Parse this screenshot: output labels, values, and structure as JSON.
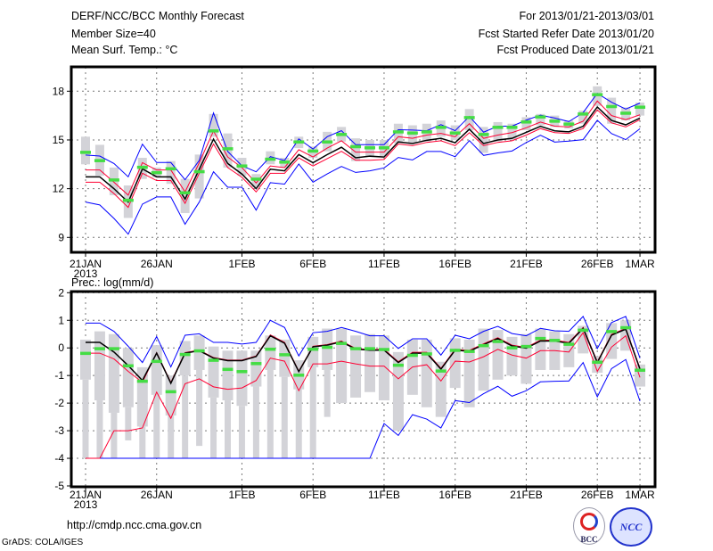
{
  "header": {
    "title": "DERF/NCC/BCC Monthly Forecast",
    "member_size": "Member Size=40",
    "variable": "Mean Surf. Temp.: °C",
    "period": "For 2013/01/21-2013/03/01",
    "started": "Fcst Started Refer Date 2013/01/20",
    "produced": "Fcst Produced Date 2013/01/21"
  },
  "footer": {
    "url": "http://cmdp.ncc.cma.gov.cn",
    "credit": "GrADS: COLA/IGES",
    "logo_left": "BCC",
    "logo_right": "NCC"
  },
  "colors": {
    "max_min": "#0000ff",
    "spread": "#ff0033",
    "mean": "#000000",
    "marker": "#44dd44",
    "box": "#d3d3d8",
    "grid": "#777777"
  },
  "chart_data": [
    {
      "type": "line",
      "title": "Mean Surf. Temp.: °C",
      "x_tick_days": [
        0,
        5,
        11,
        16,
        21,
        26,
        31,
        36,
        39
      ],
      "x_tick_labels": [
        "21JAN",
        "26JAN",
        "1FEB",
        "6FEB",
        "11FEB",
        "16FEB",
        "21FEB",
        "26FEB",
        "1MAR"
      ],
      "x_sub_label": "2013",
      "y_ticks": [
        9,
        12,
        15,
        18
      ],
      "ylim": [
        7.8,
        19.5
      ],
      "grid": true,
      "box_low": [
        13.5,
        12.8,
        11.6,
        10.2,
        12.6,
        12.7,
        12.3,
        10.5,
        11.4,
        15.2,
        13.3,
        12.8,
        12.1,
        13.5,
        13.3,
        14.5,
        13.9,
        14.3,
        14.9,
        13.7,
        14.0,
        14.0,
        14.8,
        14.8,
        14.9,
        15.2,
        15.0,
        15.6,
        14.2,
        14.9,
        15.0,
        15.6,
        15.9,
        15.8,
        15.7,
        16.0,
        17.1,
        16.0,
        16.2,
        16.5
      ],
      "box_high": [
        15.2,
        14.7,
        13.3,
        12.2,
        13.9,
        13.3,
        13.7,
        12.6,
        14.1,
        16.6,
        15.4,
        13.9,
        12.9,
        14.3,
        13.9,
        15.2,
        14.6,
        15.5,
        15.8,
        15.1,
        15.0,
        15.0,
        16.0,
        15.9,
        16.0,
        16.2,
        15.9,
        16.9,
        15.8,
        16.1,
        16.0,
        16.4,
        16.6,
        16.5,
        16.2,
        16.8,
        18.3,
        17.6,
        17.0,
        17.3
      ],
      "series": [
        {
          "name": "max",
          "color": "#0000ff",
          "values": [
            14.07,
            14.01,
            13.55,
            12.73,
            14.74,
            13.61,
            13.61,
            12.55,
            13.74,
            16.66,
            14.29,
            13.41,
            13.04,
            13.97,
            13.74,
            15.06,
            14.44,
            15.2,
            15.57,
            14.71,
            14.71,
            14.71,
            15.63,
            15.61,
            15.57,
            15.94,
            15.57,
            16.45,
            15.48,
            15.85,
            15.85,
            16.22,
            16.53,
            16.35,
            16.13,
            16.68,
            17.87,
            17.32,
            16.9,
            17.27
          ]
        },
        {
          "name": "min",
          "color": "#0000ff",
          "values": [
            11.18,
            11.0,
            10.17,
            9.2,
            11.05,
            11.49,
            11.49,
            9.81,
            11.18,
            13.04,
            12.09,
            12.09,
            10.68,
            12.37,
            12.28,
            13.52,
            12.4,
            12.91,
            13.37,
            13.0,
            13.1,
            13.28,
            13.92,
            13.77,
            14.29,
            14.29,
            13.97,
            14.96,
            14.05,
            14.2,
            14.32,
            14.84,
            15.29,
            14.87,
            14.93,
            15.02,
            16.21,
            15.39,
            15.02,
            15.69
          ]
        },
        {
          "name": "upper",
          "color": "#ff0033",
          "values": [
            13.15,
            13.15,
            12.4,
            11.6,
            13.6,
            13.15,
            13.15,
            11.8,
            13.6,
            15.55,
            13.95,
            13.3,
            12.35,
            13.4,
            13.3,
            14.4,
            13.95,
            14.5,
            14.95,
            14.25,
            14.25,
            14.25,
            15.2,
            15.1,
            15.3,
            15.4,
            15.2,
            16.0,
            15.1,
            15.3,
            15.45,
            15.75,
            16.1,
            15.85,
            15.8,
            16.15,
            17.4,
            16.5,
            16.25,
            16.55
          ]
        },
        {
          "name": "lower",
          "color": "#ff0033",
          "values": [
            12.4,
            12.4,
            11.7,
            10.85,
            12.95,
            12.5,
            12.5,
            11.1,
            12.95,
            14.75,
            13.3,
            12.7,
            11.8,
            12.95,
            12.95,
            13.9,
            13.4,
            13.85,
            14.3,
            13.75,
            13.75,
            13.8,
            14.75,
            14.65,
            14.85,
            14.95,
            14.65,
            15.45,
            14.65,
            14.85,
            14.95,
            15.3,
            15.7,
            15.45,
            15.4,
            15.7,
            16.85,
            16.05,
            15.8,
            16.25
          ]
        },
        {
          "name": "mean",
          "color": "#000000",
          "values": [
            12.73,
            12.73,
            12.0,
            11.17,
            13.22,
            12.73,
            12.73,
            11.36,
            13.2,
            15.05,
            13.55,
            12.9,
            12.0,
            13.2,
            13.1,
            14.1,
            13.6,
            14.1,
            14.55,
            13.9,
            14.0,
            13.95,
            14.88,
            14.78,
            14.98,
            15.1,
            14.83,
            15.66,
            14.78,
            15.0,
            15.1,
            15.47,
            15.84,
            15.56,
            15.5,
            15.84,
            17.03,
            16.2,
            15.93,
            16.35
          ]
        }
      ],
      "markers": [
        14.25,
        13.74,
        12.55,
        11.3,
        13.33,
        13.0,
        13.24,
        11.76,
        13.06,
        15.57,
        14.47,
        13.41,
        12.6,
        13.83,
        13.65,
        14.89,
        14.33,
        14.89,
        15.35,
        14.6,
        14.53,
        14.53,
        15.51,
        15.44,
        15.51,
        15.79,
        15.44,
        16.39,
        15.35,
        15.79,
        15.79,
        16.12,
        16.43,
        16.17,
        15.99,
        16.61,
        17.8,
        17.07,
        16.66,
        17.03
      ]
    },
    {
      "type": "line",
      "title": "Prec.: log(mm/d)",
      "x_tick_days": [
        0,
        5,
        11,
        16,
        21,
        26,
        31,
        36,
        39
      ],
      "x_tick_labels": [
        "21JAN",
        "26JAN",
        "1FEB",
        "6FEB",
        "11FEB",
        "16FEB",
        "21FEB",
        "26FEB",
        "1MAR"
      ],
      "x_sub_label": "2013",
      "y_ticks": [
        -5,
        -4,
        -3,
        -2,
        -1,
        0,
        1,
        2
      ],
      "ylim": [
        -5,
        2
      ],
      "grid": true,
      "box_high": [
        0.3,
        0.6,
        0.5,
        0,
        -0.7,
        0.1,
        -1.0,
        0.25,
        0.45,
        0.05,
        -0.1,
        -0.1,
        -0.1,
        0.45,
        0.3,
        -0.45,
        0.4,
        0.7,
        0.7,
        0.45,
        0.5,
        0.45,
        -0.15,
        0.3,
        0.3,
        -0.5,
        0.35,
        0.3,
        0.7,
        0.65,
        0.4,
        0.5,
        0.7,
        0.6,
        0.5,
        0.8,
        -0.3,
        0.9,
        1.0,
        -0.6
      ],
      "box_low": [
        -1.15,
        -1.9,
        -2.35,
        -2.15,
        -2.85,
        -1.7,
        -2.45,
        -1.0,
        -0.8,
        -1.8,
        -1.9,
        -2.1,
        -1.4,
        -0.8,
        -1.05,
        -1.5,
        -0.7,
        -0.8,
        -2.0,
        -1.8,
        -1.6,
        -1.9,
        -3.0,
        -1.7,
        -2.15,
        -2.5,
        -1.45,
        -2.15,
        -1.55,
        -1.15,
        -1.0,
        -1.3,
        -0.8,
        -0.8,
        -0.7,
        -0.2,
        -0.9,
        -0.4,
        -0.1,
        -1.4
      ],
      "whisker_low": [
        -4,
        -4,
        -4,
        -3.35,
        -4,
        -4,
        -4,
        -4,
        -3.55,
        -4,
        -4,
        -4,
        -4,
        -4,
        -4,
        -4,
        -4,
        -2.5,
        -2.0,
        -1.8,
        -1.6,
        -1.9,
        -3.0,
        -1.7,
        -2.15,
        -2.5,
        -1.45,
        -2.15,
        -1.55,
        -1.15,
        -1.0,
        -1.3,
        -0.8,
        -0.8,
        -0.7,
        -0.2,
        -0.9,
        -0.4,
        -0.1,
        -1.4
      ],
      "series": [
        {
          "name": "max",
          "color": "#0000ff",
          "values": [
            0.9,
            0.9,
            0.6,
            0.06,
            -0.53,
            0.41,
            -0.69,
            0.46,
            0.51,
            0.2,
            0.2,
            0.14,
            0.2,
            1.0,
            0.74,
            -0.29,
            0.55,
            0.6,
            0.74,
            0.6,
            0.44,
            0.44,
            -0.02,
            0.33,
            0.33,
            -0.26,
            0.46,
            0.33,
            0.6,
            0.78,
            0.52,
            0.44,
            0.71,
            0.62,
            0.6,
            1.14,
            -0.02,
            0.92,
            1.14,
            -0.37
          ]
        },
        {
          "name": "min",
          "color": "#0000ff",
          "values": [
            -4,
            -4,
            -4,
            -4,
            -4,
            -4,
            -4,
            -4,
            -4,
            -4,
            -4,
            -4,
            -4,
            -4,
            -4,
            -4,
            -4,
            -4,
            -4,
            -4,
            -4,
            -2.74,
            -3.17,
            -2.42,
            -2.58,
            -2.9,
            -1.91,
            -1.98,
            -1.66,
            -1.39,
            -1.75,
            -1.55,
            -1.23,
            -1.21,
            -1.2,
            -0.53,
            -1.77,
            -0.75,
            -0.42,
            -1.93
          ]
        },
        {
          "name": "upper",
          "color": "#ff0033",
          "values": [
            -0.19,
            -0.19,
            -0.4,
            -0.85,
            -1.25,
            -0.17,
            -1.25,
            -0.17,
            -0.08,
            -0.35,
            -0.44,
            -0.44,
            -0.29,
            0.47,
            0.2,
            -0.84,
            0.06,
            0.12,
            0.25,
            -0.02,
            -0.06,
            -0.05,
            -0.5,
            -0.16,
            -0.16,
            -0.74,
            -0.05,
            -0.09,
            0.15,
            0.37,
            0.1,
            0.02,
            0.28,
            0.28,
            0.2,
            0.74,
            -0.5,
            0.49,
            0.71,
            -0.74
          ]
        },
        {
          "name": "lower",
          "color": "#ff0033",
          "values": [
            -4,
            -4,
            -3,
            -3,
            -2.9,
            -1.6,
            -2.55,
            -1.3,
            -1.12,
            -1.41,
            -1.5,
            -1.45,
            -1.18,
            -0.37,
            -0.48,
            -1.55,
            -0.58,
            -0.58,
            -0.48,
            -0.58,
            -0.66,
            -0.66,
            -1.12,
            -0.69,
            -0.61,
            -1.2,
            -0.48,
            -0.51,
            -0.32,
            -0.05,
            -0.26,
            -0.37,
            -0.1,
            -0.1,
            -0.15,
            0.55,
            -0.85,
            0.03,
            0.44,
            -1.07
          ]
        },
        {
          "name": "mean",
          "color": "#000000",
          "values": [
            0.2,
            0.2,
            -0.15,
            -0.64,
            -1.18,
            -0.19,
            -1.28,
            -0.19,
            -0.1,
            -0.37,
            -0.46,
            -0.46,
            -0.31,
            0.44,
            0.17,
            -0.86,
            0.04,
            0.1,
            0.22,
            -0.04,
            -0.08,
            -0.08,
            -0.53,
            -0.19,
            -0.19,
            -0.77,
            -0.08,
            -0.12,
            0.12,
            0.34,
            0.07,
            -0.01,
            0.25,
            0.25,
            0.17,
            0.71,
            -0.53,
            0.46,
            0.68,
            -0.77
          ]
        }
      ],
      "markers": [
        -0.19,
        -0.02,
        -0.02,
        -0.64,
        -1.2,
        -0.48,
        -1.58,
        -0.23,
        -0.1,
        -0.44,
        -0.77,
        -0.85,
        -0.56,
        -0.04,
        -0.24,
        -0.98,
        -0.04,
        0.03,
        0.17,
        -0.02,
        -0.02,
        -0.05,
        -0.62,
        -0.26,
        -0.21,
        -0.83,
        -0.08,
        -0.12,
        0.09,
        0.24,
        0.01,
        0.06,
        0.35,
        0.28,
        0.14,
        0.65,
        -0.51,
        0.6,
        0.74,
        -0.8
      ]
    }
  ]
}
